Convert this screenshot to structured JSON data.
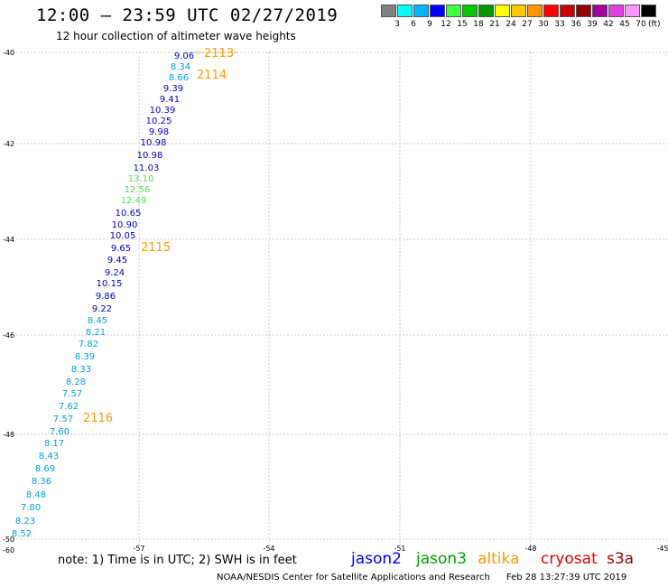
{
  "header": {
    "title": "12:00 — 23:59 UTC 02/27/2019",
    "subtitle": "12 hour collection of altimeter wave heights"
  },
  "colorbar": {
    "colors": [
      "#808080",
      "#00ffff",
      "#00b4ff",
      "#0000ff",
      "#40ff40",
      "#00c800",
      "#009600",
      "#ffff00",
      "#ffc800",
      "#ff9600",
      "#ff0000",
      "#c80000",
      "#960000",
      "#a000a0",
      "#e040e0",
      "#ff96ff",
      "#000000"
    ],
    "labels": [
      "3",
      "6",
      "9",
      "12",
      "15",
      "18",
      "21",
      "24",
      "27",
      "30",
      "33",
      "36",
      "39",
      "42",
      "45",
      "70"
    ],
    "unit": "(ft)"
  },
  "map": {
    "lat_labels": [
      "-40",
      "-42",
      "-44",
      "-46",
      "-48",
      "-50"
    ],
    "lon_labels": [
      "-57",
      "-54",
      "-51",
      "-48",
      "-45"
    ],
    "corner_label": "-60",
    "grid_color": "#c8c8c8",
    "lat_range": [
      -50.6,
      -39.95
    ],
    "lon_range": [
      -60,
      -45
    ]
  },
  "observations": [
    {
      "value": "9.06",
      "color": "#0000c8"
    },
    {
      "value": "8.34",
      "color": "#00a0d8"
    },
    {
      "value": "8.66",
      "color": "#00a0d8"
    },
    {
      "value": "9.39",
      "color": "#0000c8"
    },
    {
      "value": "9.41",
      "color": "#0000c8"
    },
    {
      "value": "10.39",
      "color": "#0000c8"
    },
    {
      "value": "10.25",
      "color": "#0000c8"
    },
    {
      "value": "9.98",
      "color": "#0000c8"
    },
    {
      "value": "10.98",
      "color": "#0000c8"
    },
    {
      "value": "10.98",
      "color": "#0000c8"
    },
    {
      "value": "11.03",
      "color": "#0000c8"
    },
    {
      "value": "13.10",
      "color": "#50e050"
    },
    {
      "value": "12.56",
      "color": "#50e050"
    },
    {
      "value": "12.49",
      "color": "#50e050"
    },
    {
      "value": "10.65",
      "color": "#0000c8"
    },
    {
      "value": "10.90",
      "color": "#0000c8"
    },
    {
      "value": "10.05",
      "color": "#0000c8"
    },
    {
      "value": "9.65",
      "color": "#0000c8"
    },
    {
      "value": "9.45",
      "color": "#0000c8"
    },
    {
      "value": "9.24",
      "color": "#0000c8"
    },
    {
      "value": "10.15",
      "color": "#0000c8"
    },
    {
      "value": "9.86",
      "color": "#0000c8"
    },
    {
      "value": "9.22",
      "color": "#0000c8"
    },
    {
      "value": "8.45",
      "color": "#00a0d8"
    },
    {
      "value": "8.21",
      "color": "#00a0d8"
    },
    {
      "value": "7.82",
      "color": "#00a0d8"
    },
    {
      "value": "8.39",
      "color": "#00a0d8"
    },
    {
      "value": "8.33",
      "color": "#00a0d8"
    },
    {
      "value": "8.28",
      "color": "#00a0d8"
    },
    {
      "value": "7.57",
      "color": "#00a0d8"
    },
    {
      "value": "7.62",
      "color": "#00a0d8"
    },
    {
      "value": "7.57",
      "color": "#00a0d8"
    },
    {
      "value": "7.60",
      "color": "#00a0d8"
    },
    {
      "value": "8.17",
      "color": "#00a0d8"
    },
    {
      "value": "8.43",
      "color": "#00a0d8"
    },
    {
      "value": "8.69",
      "color": "#00a0d8"
    },
    {
      "value": "8.36",
      "color": "#00a0d8"
    },
    {
      "value": "8.48",
      "color": "#00a0d8"
    },
    {
      "value": "7.80",
      "color": "#00a0d8"
    },
    {
      "value": "8.23",
      "color": "#00a0d8"
    },
    {
      "value": "8.52",
      "color": "#00a0d8"
    }
  ],
  "time_labels": [
    {
      "text": "2113",
      "color": "#ff9900"
    },
    {
      "text": "2114",
      "color": "#ff9900"
    },
    {
      "text": "2115",
      "color": "#ff9900"
    },
    {
      "text": "2116",
      "color": "#ff9900"
    }
  ],
  "note": "note:  1) Time is in UTC;  2) SWH is in feet",
  "legend": [
    {
      "name": "jason2",
      "color": "#0000ff"
    },
    {
      "name": "jason3",
      "color": "#00a000"
    },
    {
      "name": "altika",
      "color": "#ff9900"
    },
    {
      "name": "cryosat",
      "color": "#e00000"
    },
    {
      "name": "s3a",
      "color": "#990000"
    }
  ],
  "footer": {
    "credit": "NOAA/NESDIS Center for Satellite Applications and Research",
    "timestamp": "Feb 28 13:27:39 UTC 2019"
  }
}
